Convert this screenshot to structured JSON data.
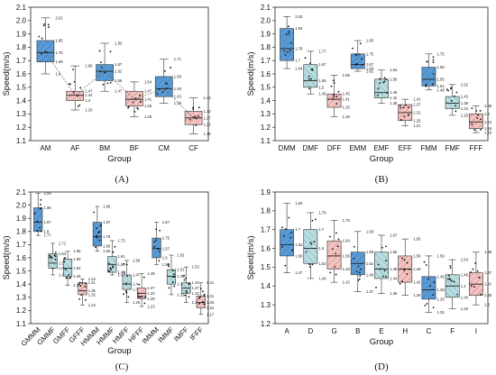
{
  "colors": {
    "blue": "#5b9bd5",
    "green": "#b9dde0",
    "pink": "#f2c3c1",
    "blue_hatch": "#2f6fa8",
    "green_hatch": "#5f9ea3",
    "pink_hatch": "#c9706b"
  },
  "chart_data": [
    {
      "panel": "(A)",
      "type": "box",
      "xlabel": "Group",
      "ylabel": "Speed(m/s)",
      "ylim": [
        1.1,
        2.1
      ],
      "yticks": [
        "1.1",
        "1.2",
        "1.3",
        "1.4",
        "1.5",
        "1.6",
        "1.7",
        "1.8",
        "1.9",
        "2.0",
        "2.1"
      ],
      "connect_means": true,
      "categories": [
        "AM",
        "AF",
        "BM",
        "BF",
        "CM",
        "CF"
      ],
      "boxes": [
        {
          "name": "AM",
          "color": "blue",
          "min": 1.6,
          "q1": 1.69,
          "median": 1.76,
          "q3": 1.85,
          "max": 2.02,
          "labels": [
            "2.02",
            "1.85",
            "1.76",
            "1.69",
            "1.6"
          ]
        },
        {
          "name": "AF",
          "color": "pink",
          "min": 1.33,
          "q1": 1.4,
          "median": 1.44,
          "q3": 1.47,
          "max": 1.66,
          "labels": [
            "1.66",
            "1.47",
            "1.44",
            "1.4",
            "1.33"
          ]
        },
        {
          "name": "BM",
          "color": "blue",
          "min": 1.47,
          "q1": 1.55,
          "median": 1.62,
          "q3": 1.67,
          "max": 1.83,
          "labels": [
            "1.83",
            "1.67",
            "1.62",
            "1.55",
            "1.47"
          ]
        },
        {
          "name": "BF",
          "color": "pink",
          "min": 1.28,
          "q1": 1.36,
          "median": 1.41,
          "q3": 1.47,
          "max": 1.54,
          "labels": [
            "1.54",
            "1.47",
            "1.41",
            "1.36",
            "1.28"
          ]
        },
        {
          "name": "CM",
          "color": "blue",
          "min": 1.38,
          "q1": 1.43,
          "median": 1.49,
          "q3": 1.58,
          "max": 1.71,
          "labels": [
            "1.71",
            "1.58",
            "1.49",
            "1.43",
            "1.38"
          ]
        },
        {
          "name": "CF",
          "color": "pink",
          "min": 1.15,
          "q1": 1.22,
          "median": 1.27,
          "q3": 1.32,
          "max": 1.42,
          "labels": [
            "1.42",
            "1.32",
            "1.27",
            "1.22",
            "1.15"
          ]
        }
      ]
    },
    {
      "panel": "(B)",
      "type": "box",
      "xlabel": "Group",
      "ylabel": "Speed(m/s)",
      "ylim": [
        1.1,
        2.1
      ],
      "yticks": [
        "1.1",
        "1.2",
        "1.3",
        "1.4",
        "1.5",
        "1.6",
        "1.7",
        "1.8",
        "1.9",
        "2.0",
        "2.1"
      ],
      "connect_means": false,
      "categories": [
        "DMM",
        "DMF",
        "DFF",
        "EMM",
        "EMF",
        "EFF",
        "FMM",
        "FMF",
        "FFF"
      ],
      "boxes": [
        {
          "name": "DMM",
          "color": "blue",
          "min": 1.64,
          "q1": 1.7,
          "median": 1.79,
          "q3": 1.94,
          "max": 2.03,
          "labels": [
            "2.03",
            "1.94",
            "1.79",
            "1.7",
            "1.64"
          ]
        },
        {
          "name": "DMF",
          "color": "green",
          "min": 1.45,
          "q1": 1.5,
          "median": 1.55,
          "q3": 1.67,
          "max": 1.77,
          "labels": [
            "1.77",
            "1.67",
            "1.55",
            "1.5",
            "1.45"
          ]
        },
        {
          "name": "DFF",
          "color": "pink",
          "min": 1.28,
          "q1": 1.35,
          "median": 1.41,
          "q3": 1.45,
          "max": 1.59,
          "labels": [
            "1.59",
            "1.45",
            "1.41",
            "1.35",
            "1.28"
          ]
        },
        {
          "name": "EMM",
          "color": "blue",
          "min": 1.62,
          "q1": 1.64,
          "median": 1.67,
          "q3": 1.75,
          "max": 1.85,
          "labels": [
            "1.85",
            "1.75",
            "1.67",
            "1.64",
            "1.62"
          ]
        },
        {
          "name": "EMF",
          "color": "green",
          "min": 1.38,
          "q1": 1.42,
          "median": 1.46,
          "q3": 1.56,
          "max": 1.63,
          "labels": [
            "1.63",
            "1.56",
            "1.46",
            "1.42",
            "1.38"
          ]
        },
        {
          "name": "EFF",
          "color": "pink",
          "min": 1.21,
          "q1": 1.25,
          "median": 1.31,
          "q3": 1.37,
          "max": 1.41,
          "labels": [
            "1.41",
            "1.37",
            "1.31",
            "1.25",
            "1.21"
          ]
        },
        {
          "name": "FMM",
          "color": "blue",
          "min": 1.48,
          "q1": 1.51,
          "median": 1.56,
          "q3": 1.65,
          "max": 1.75,
          "labels": [
            "1.75",
            "1.65",
            "1.56",
            "1.51",
            "1.48"
          ]
        },
        {
          "name": "FMF",
          "color": "green",
          "min": 1.29,
          "q1": 1.34,
          "median": 1.38,
          "q3": 1.43,
          "max": 1.52,
          "labels": [
            "1.52",
            "1.43",
            "1.38",
            "1.34",
            "1.29"
          ]
        },
        {
          "name": "FFF",
          "color": "pink",
          "min": 1.16,
          "q1": 1.19,
          "median": 1.24,
          "q3": 1.3,
          "max": 1.36,
          "labels": [
            "1.36",
            "1.3",
            "1.24",
            "1.19",
            "1.16"
          ]
        }
      ]
    },
    {
      "panel": "(C)",
      "type": "box",
      "xlabel": "Group",
      "ylabel": "Speed(m/s)",
      "ylim": [
        1.1,
        2.1
      ],
      "yticks": [
        "1.1",
        "1.2",
        "1.3",
        "1.4",
        "1.5",
        "1.6",
        "1.7",
        "1.8",
        "1.9",
        "2.0",
        "2.1"
      ],
      "connect_means": false,
      "categories": [
        "GMMM",
        "GMMF",
        "GMFF",
        "GFFF",
        "HMMM",
        "HMMF",
        "HMFF",
        "HFFF",
        "IMMM",
        "IMMF",
        "IMFF",
        "IFFF"
      ],
      "boxes": [
        {
          "name": "GMMM",
          "color": "blue",
          "min": 1.77,
          "q1": 1.8,
          "median": 1.87,
          "q3": 1.98,
          "max": 2.09,
          "labels": [
            "2.09",
            "1.98",
            "1.87",
            "1.8",
            "1.77"
          ]
        },
        {
          "name": "GMMF",
          "color": "green",
          "min": 1.47,
          "q1": 1.52,
          "median": 1.56,
          "q3": 1.63,
          "max": 1.71,
          "labels": [
            "1.71",
            "1.63",
            "1.56",
            "1.52",
            "1.47"
          ]
        },
        {
          "name": "GMFF",
          "color": "green",
          "min": 1.39,
          "q1": 1.46,
          "median": 1.52,
          "q3": 1.59,
          "max": 1.65,
          "labels": [
            "1.65",
            "1.59",
            "1.52",
            "1.46",
            "1.39"
          ]
        },
        {
          "name": "GFFF",
          "color": "pink",
          "min": 1.24,
          "q1": 1.32,
          "median": 1.35,
          "q3": 1.41,
          "max": 1.44,
          "labels": [
            "1.44",
            "1.41",
            "1.35",
            "1.32",
            "1.24"
          ]
        },
        {
          "name": "HMMM",
          "color": "blue",
          "min": 1.65,
          "q1": 1.69,
          "median": 1.76,
          "q3": 1.87,
          "max": 1.99,
          "labels": [
            "1.99",
            "1.87",
            "1.76",
            "1.69",
            "1.65"
          ]
        },
        {
          "name": "HMMF",
          "color": "green",
          "min": 1.47,
          "q1": 1.49,
          "median": 1.55,
          "q3": 1.61,
          "max": 1.73,
          "labels": [
            "1.73",
            "1.61",
            "1.55",
            "1.49",
            "1.47"
          ]
        },
        {
          "name": "HMFF",
          "color": "green",
          "min": 1.26,
          "q1": 1.36,
          "median": 1.4,
          "q3": 1.47,
          "max": 1.58,
          "labels": [
            "1.58",
            "1.47",
            "1.4",
            "1.36",
            "1.26"
          ]
        },
        {
          "name": "HFFF",
          "color": "pink",
          "min": 1.23,
          "q1": 1.29,
          "median": 1.33,
          "q3": 1.37,
          "max": 1.48,
          "labels": [
            "1.48",
            "1.37",
            "1.33",
            "1.29",
            "1.23"
          ]
        },
        {
          "name": "IMMM",
          "color": "blue",
          "min": 1.55,
          "q1": 1.6,
          "median": 1.67,
          "q3": 1.75,
          "max": 1.87,
          "labels": [
            "1.87",
            "1.75",
            "1.67",
            "1.6",
            "1.55"
          ]
        },
        {
          "name": "IMMF",
          "color": "green",
          "min": 1.32,
          "q1": 1.4,
          "median": 1.46,
          "q3": 1.51,
          "max": 1.62,
          "labels": [
            "1.62",
            "1.51",
            "1.46",
            "1.4",
            "1.32"
          ]
        },
        {
          "name": "IMFF",
          "color": "green",
          "min": 1.26,
          "q1": 1.33,
          "median": 1.37,
          "q3": 1.41,
          "max": 1.53,
          "labels": [
            "1.53",
            "1.41",
            "1.37",
            "1.33",
            "1.26"
          ]
        },
        {
          "name": "IFFF",
          "color": "pink",
          "min": 1.17,
          "q1": 1.22,
          "median": 1.26,
          "q3": 1.31,
          "max": 1.41,
          "labels": [
            "1.41",
            "1.31",
            "1.26",
            "1.22",
            "1.17"
          ]
        }
      ]
    },
    {
      "panel": "(D)",
      "type": "box",
      "xlabel": "Group",
      "ylabel": "Speed(m/s)",
      "ylim": [
        1.2,
        1.9
      ],
      "yticks": [
        "1.2",
        "1.3",
        "1.4",
        "1.5",
        "1.6",
        "1.7",
        "1.8",
        "1.9"
      ],
      "connect_means": false,
      "categories": [
        "A",
        "D",
        "G",
        "B",
        "E",
        "H",
        "C",
        "F",
        "I"
      ],
      "boxes": [
        {
          "name": "A",
          "color": "blue",
          "min": 1.47,
          "q1": 1.56,
          "median": 1.62,
          "q3": 1.7,
          "max": 1.84,
          "labels": [
            "1.84",
            "1.7",
            "1.62",
            "1.56",
            "1.47"
          ]
        },
        {
          "name": "D",
          "color": "green",
          "min": 1.44,
          "q1": 1.52,
          "median": 1.6,
          "q3": 1.7,
          "max": 1.79,
          "labels": [
            "1.79",
            "1.7",
            "1.6",
            "1.52",
            "1.44"
          ]
        },
        {
          "name": "G",
          "color": "pink",
          "min": 1.42,
          "q1": 1.49,
          "median": 1.56,
          "q3": 1.64,
          "max": 1.75,
          "labels": [
            "1.75",
            "1.64",
            "1.56",
            "1.49",
            "1.42"
          ]
        },
        {
          "name": "B",
          "color": "blue",
          "min": 1.37,
          "q1": 1.46,
          "median": 1.52,
          "q3": 1.58,
          "max": 1.69,
          "labels": [
            "1.69",
            "1.58",
            "1.52",
            "1.46",
            "1.37"
          ]
        },
        {
          "name": "E",
          "color": "green",
          "min": 1.36,
          "q1": 1.44,
          "median": 1.49,
          "q3": 1.58,
          "max": 1.67,
          "labels": [
            "1.67",
            "1.58",
            "1.49",
            "1.44",
            "1.36"
          ]
        },
        {
          "name": "H",
          "color": "pink",
          "min": 1.35,
          "q1": 1.42,
          "median": 1.49,
          "q3": 1.56,
          "max": 1.65,
          "labels": [
            "1.65",
            "1.56",
            "1.49",
            "1.42",
            "1.35"
          ]
        },
        {
          "name": "C",
          "color": "blue",
          "min": 1.26,
          "q1": 1.33,
          "median": 1.38,
          "q3": 1.45,
          "max": 1.56,
          "labels": [
            "1.56",
            "1.45",
            "1.38",
            "1.33",
            "1.26"
          ]
        },
        {
          "name": "F",
          "color": "green",
          "min": 1.28,
          "q1": 1.34,
          "median": 1.4,
          "q3": 1.46,
          "max": 1.54,
          "labels": [
            "1.54",
            "1.46",
            "1.4",
            "1.34",
            "1.28"
          ]
        },
        {
          "name": "I",
          "color": "pink",
          "min": 1.3,
          "q1": 1.35,
          "median": 1.41,
          "q3": 1.47,
          "max": 1.58,
          "labels": [
            "1.58",
            "1.47",
            "1.41",
            "1.35",
            "1.3"
          ]
        }
      ]
    }
  ]
}
